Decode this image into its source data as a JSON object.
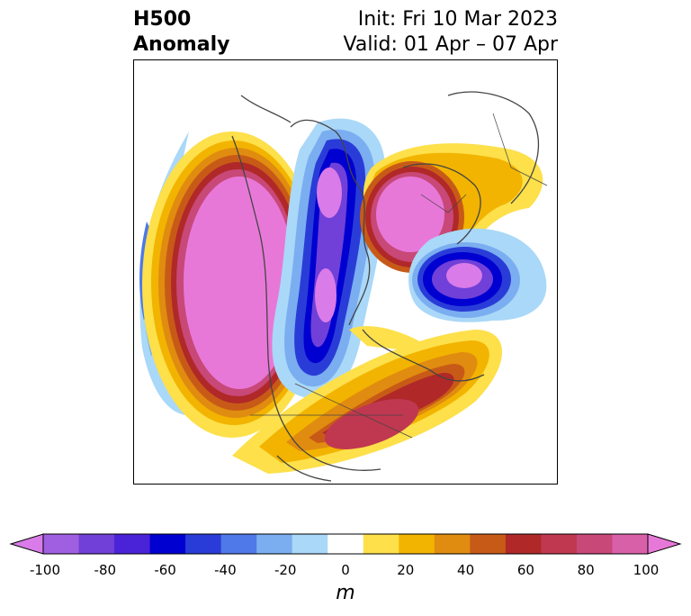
{
  "title": {
    "left": [
      "H500",
      "Anomaly"
    ],
    "right": [
      "Init: Fri 10 Mar 2023",
      "Valid: 01 Apr – 07 Apr"
    ]
  },
  "colorbar": {
    "ticks": [
      "-100",
      "-80",
      "-60",
      "-40",
      "-20",
      "0",
      "20",
      "40",
      "60",
      "80",
      "100"
    ],
    "unit": "m",
    "colors": [
      "#d97be8",
      "#a05fe0",
      "#7040d8",
      "#4a22d8",
      "#0000d0",
      "#2a3cd8",
      "#4f78e8",
      "#7aaef0",
      "#aad8f8",
      "#ffffff",
      "#fde04a",
      "#f2b400",
      "#e08c10",
      "#c85a18",
      "#b02828",
      "#c03850",
      "#c84878",
      "#d860a8",
      "#e878d8"
    ]
  },
  "colors": {
    "land": "#444444",
    "frame": "#000000"
  }
}
